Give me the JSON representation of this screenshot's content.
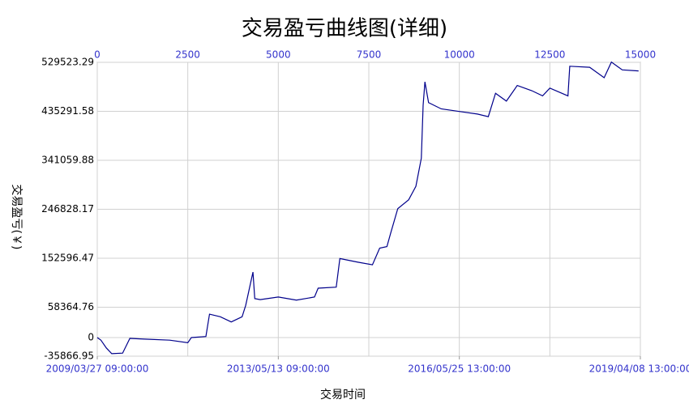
{
  "chart_data": {
    "type": "line",
    "title": "交易盈亏曲线图(详细)",
    "x_label": "交易时间",
    "y_label": "交易盈亏(￥)",
    "x": [
      0,
      100,
      250,
      400,
      700,
      900,
      1300,
      2000,
      2500,
      2600,
      3000,
      3100,
      3400,
      3700,
      4000,
      4100,
      4300,
      4350,
      4500,
      5000,
      5500,
      6000,
      6100,
      6600,
      6700,
      7200,
      7600,
      7800,
      8000,
      8100,
      8300,
      8600,
      8800,
      8950,
      9000,
      9050,
      9150,
      9500,
      10000,
      10500,
      10800,
      11000,
      11300,
      11600,
      12000,
      12300,
      12500,
      13000,
      13050,
      13600,
      14000,
      14200,
      14500,
      14950
    ],
    "values": [
      0,
      -5000,
      -20000,
      -31000,
      -30000,
      -1600,
      -3000,
      -5000,
      -10000,
      0,
      2000,
      45000,
      40000,
      30000,
      40000,
      62000,
      126000,
      75000,
      73000,
      78000,
      72000,
      78000,
      95000,
      97000,
      152000,
      145000,
      140000,
      172000,
      175000,
      200000,
      248000,
      265000,
      291000,
      345000,
      447000,
      492000,
      452000,
      440000,
      435000,
      430000,
      425000,
      470000,
      455000,
      485000,
      475000,
      465000,
      480000,
      465000,
      522000,
      520000,
      500000,
      530000,
      515000,
      513000
    ],
    "color": "#00008b",
    "xlim": [
      0,
      15000
    ],
    "xticks": [
      0,
      2500,
      5000,
      7500,
      10000,
      12500,
      15000
    ],
    "x2ticks": [
      {
        "value": 0,
        "label": "2009/03/27 09:00:00"
      },
      {
        "value": 5000,
        "label": "2013/05/13 09:00:00"
      },
      {
        "value": 10000,
        "label": "2016/05/25 13:00:00"
      },
      {
        "value": 15000,
        "label": "2019/04/08 13:00:00"
      }
    ],
    "ylim": [
      -35866.95,
      529523.29
    ],
    "yticks": [
      -35866.95,
      0,
      58364.76,
      152596.47,
      246828.17,
      341059.88,
      435291.58,
      529523.29
    ],
    "grid": true
  }
}
